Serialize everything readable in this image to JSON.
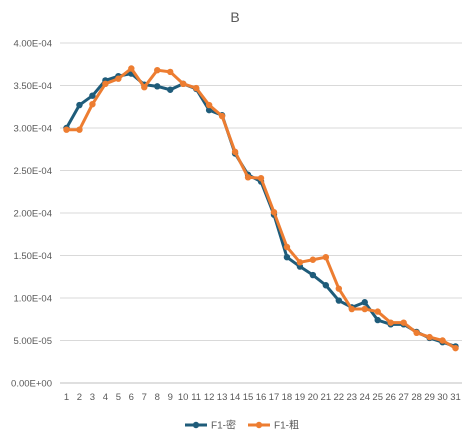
{
  "chart_data": {
    "type": "line",
    "title": "B",
    "categories": [
      "1",
      "2",
      "3",
      "4",
      "5",
      "6",
      "7",
      "8",
      "9",
      "10",
      "11",
      "12",
      "13",
      "14",
      "15",
      "16",
      "17",
      "18",
      "19",
      "20",
      "21",
      "22",
      "23",
      "24",
      "25",
      "26",
      "27",
      "28",
      "29",
      "30",
      "31"
    ],
    "ylim": [
      0,
      0.0004
    ],
    "yticks": [
      "0.00E+00",
      "5.00E-05",
      "1.00E-04",
      "1.50E-04",
      "2.00E-04",
      "2.50E-04",
      "3.00E-04",
      "3.50E-04",
      "4.00E-04"
    ],
    "grid": true,
    "legend_position": "bottom",
    "series": [
      {
        "name": "F1-密",
        "color": "#1f5c7a",
        "values": [
          0.0003,
          0.000327,
          0.000338,
          0.000356,
          0.000361,
          0.000364,
          0.000351,
          0.000349,
          0.000345,
          0.000352,
          0.000346,
          0.000321,
          0.000315,
          0.00027,
          0.000245,
          0.000237,
          0.000198,
          0.000148,
          0.000137,
          0.000127,
          0.000115,
          9.7e-05,
          8.9e-05,
          9.5e-05,
          7.4e-05,
          6.9e-05,
          6.9e-05,
          6e-05,
          5.3e-05,
          4.8e-05,
          4.3e-05
        ]
      },
      {
        "name": "F1-粗",
        "color": "#ed7d31",
        "values": [
          0.000298,
          0.000298,
          0.000328,
          0.000352,
          0.000358,
          0.00037,
          0.000348,
          0.000368,
          0.000366,
          0.000352,
          0.000347,
          0.000327,
          0.000314,
          0.000272,
          0.000242,
          0.000241,
          0.000201,
          0.00016,
          0.000142,
          0.000145,
          0.000148,
          0.000111,
          8.7e-05,
          8.7e-05,
          8.4e-05,
          7.1e-05,
          7.1e-05,
          5.9e-05,
          5.4e-05,
          5e-05,
          4.1e-05
        ]
      }
    ]
  }
}
